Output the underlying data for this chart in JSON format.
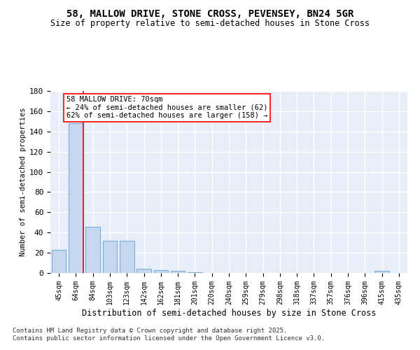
{
  "title1": "58, MALLOW DRIVE, STONE CROSS, PEVENSEY, BN24 5GR",
  "title2": "Size of property relative to semi-detached houses in Stone Cross",
  "xlabel": "Distribution of semi-detached houses by size in Stone Cross",
  "ylabel": "Number of semi-detached properties",
  "categories": [
    "45sqm",
    "64sqm",
    "84sqm",
    "103sqm",
    "123sqm",
    "142sqm",
    "162sqm",
    "181sqm",
    "201sqm",
    "220sqm",
    "240sqm",
    "259sqm",
    "279sqm",
    "298sqm",
    "318sqm",
    "337sqm",
    "357sqm",
    "376sqm",
    "396sqm",
    "415sqm",
    "435sqm"
  ],
  "values": [
    23,
    148,
    46,
    32,
    32,
    4,
    3,
    2,
    1,
    0,
    0,
    0,
    0,
    0,
    0,
    0,
    0,
    0,
    0,
    2,
    0
  ],
  "bar_color": "#c5d8f0",
  "bar_edge_color": "#7aadd4",
  "background_color": "#e8eef8",
  "grid_color": "#ffffff",
  "red_line_x": 1.42,
  "annotation_text": "58 MALLOW DRIVE: 70sqm\n← 24% of semi-detached houses are smaller (62)\n62% of semi-detached houses are larger (158) →",
  "ylim": [
    0,
    180
  ],
  "yticks": [
    0,
    20,
    40,
    60,
    80,
    100,
    120,
    140,
    160,
    180
  ],
  "footer1": "Contains HM Land Registry data © Crown copyright and database right 2025.",
  "footer2": "Contains public sector information licensed under the Open Government Licence v3.0."
}
